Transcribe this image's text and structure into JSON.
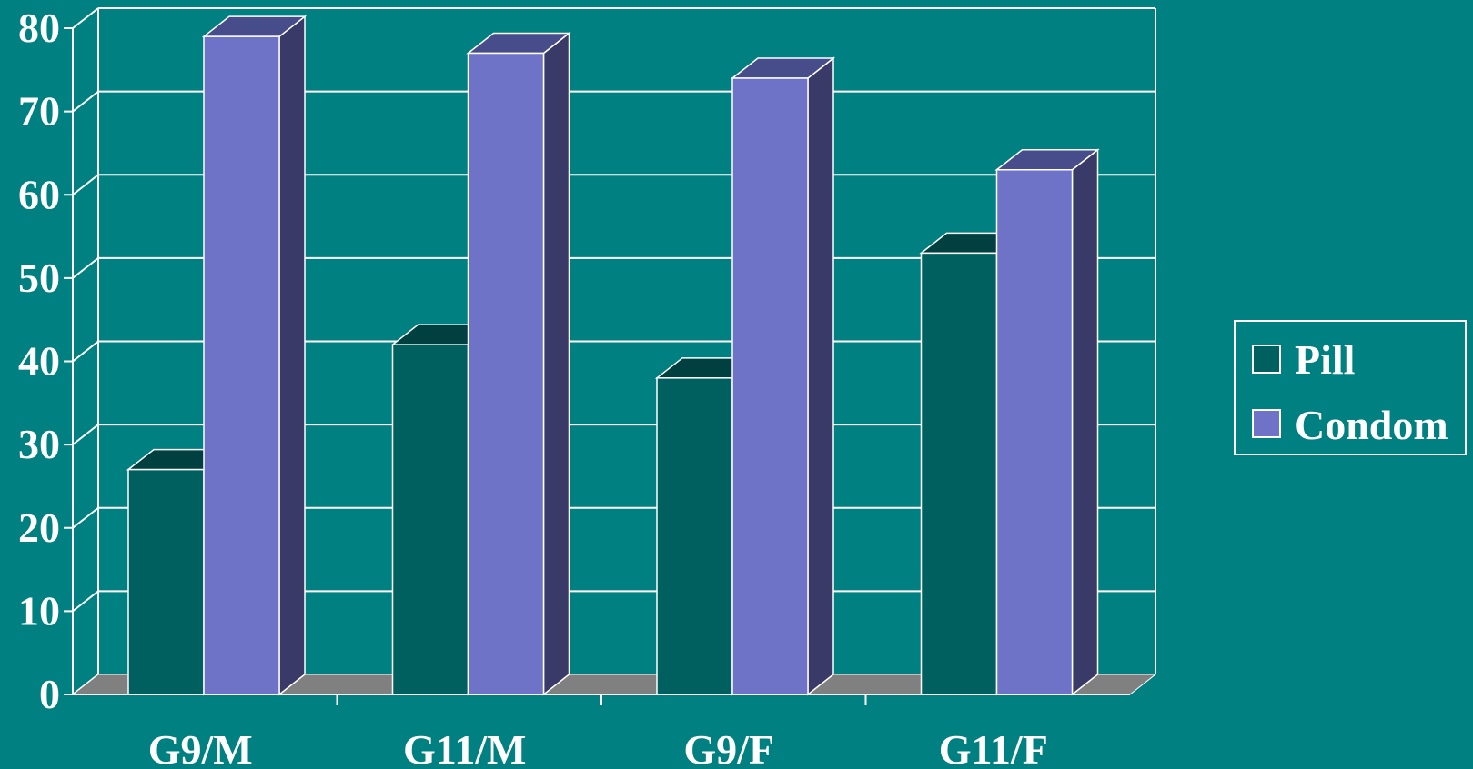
{
  "chart_data": {
    "type": "bar",
    "categories": [
      "G9/M",
      "G11/M",
      "G9/F",
      "G11/F"
    ],
    "series": [
      {
        "name": "Pill",
        "values": [
          27,
          42,
          38,
          53
        ]
      },
      {
        "name": "Condom",
        "values": [
          79,
          77,
          74,
          63
        ]
      }
    ],
    "ylim": [
      0,
      80
    ],
    "yticks": [
      0,
      10,
      20,
      30,
      40,
      50,
      60,
      70,
      80
    ],
    "grid": true,
    "legend_position": "right",
    "three_d": true
  },
  "colors": {
    "background": "#008080",
    "grid": "#ffffff",
    "floor": "#808080",
    "pill_front": "#006060",
    "pill_top": "#004040",
    "pill_side": "#003a3a",
    "condom_front": "#6f73c7",
    "condom_top": "#474c8a",
    "condom_side": "#3a3a68"
  }
}
